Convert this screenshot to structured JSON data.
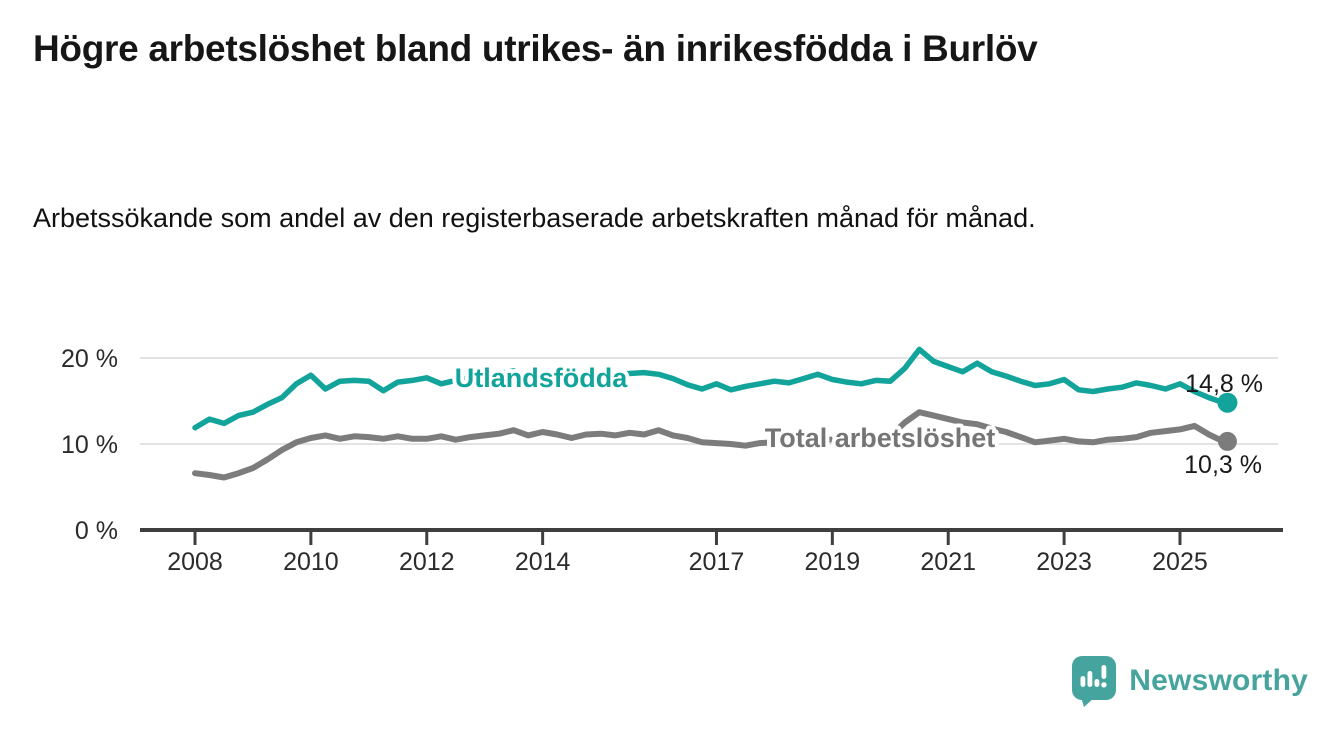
{
  "title": "Högre arbetslöshet bland utrikes- än inrikesfödda i Burlöv",
  "subtitle": "Arbetssökande som andel av den registerbaserade arbetskraften månad för månad.",
  "branding": {
    "logo_text": "Newsworthy",
    "logo_icon": "bar-chart-speech-bubble-icon",
    "logo_color": "#46a49e"
  },
  "colors": {
    "accent_teal": "#12a39b",
    "line_gray": "#7c7c7c",
    "title_text": "#161616",
    "gridline": "#e3e3e3",
    "axis": "#3f3f3f"
  },
  "chart_data": {
    "type": "line",
    "title": "Högre arbetslöshet bland utrikes- än inrikesfödda i Burlöv",
    "subtitle": "Arbetssökande som andel av den registerbaserade arbetskraften månad för månad.",
    "xlabel": "",
    "ylabel": "",
    "unit": "%",
    "ylim": [
      0,
      22
    ],
    "grid": "horizontal",
    "legend": "inline-series-labels",
    "yticks": [
      {
        "value": 0,
        "label": "0 %"
      },
      {
        "value": 10,
        "label": "10 %"
      },
      {
        "value": 20,
        "label": "20 %"
      }
    ],
    "xticks": [
      {
        "value": 2008,
        "label": "2008"
      },
      {
        "value": 2010,
        "label": "2010"
      },
      {
        "value": 2012,
        "label": "2012"
      },
      {
        "value": 2014,
        "label": "2014"
      },
      {
        "value": 2017,
        "label": "2017"
      },
      {
        "value": 2019,
        "label": "2019"
      },
      {
        "value": 2021,
        "label": "2021"
      },
      {
        "value": 2023,
        "label": "2023"
      },
      {
        "value": 2025,
        "label": "2025"
      }
    ],
    "x": [
      2008.0,
      2008.25,
      2008.5,
      2008.75,
      2009.0,
      2009.25,
      2009.5,
      2009.75,
      2010.0,
      2010.25,
      2010.5,
      2010.75,
      2011.0,
      2011.25,
      2011.5,
      2011.75,
      2012.0,
      2012.25,
      2012.5,
      2012.75,
      2013.0,
      2013.25,
      2013.5,
      2013.75,
      2014.0,
      2014.25,
      2014.5,
      2014.75,
      2015.0,
      2015.25,
      2015.5,
      2015.75,
      2016.0,
      2016.25,
      2016.5,
      2016.75,
      2017.0,
      2017.25,
      2017.5,
      2017.75,
      2018.0,
      2018.25,
      2018.5,
      2018.75,
      2019.0,
      2019.25,
      2019.5,
      2019.75,
      2020.0,
      2020.25,
      2020.5,
      2020.75,
      2021.0,
      2021.25,
      2021.5,
      2021.75,
      2022.0,
      2022.25,
      2022.5,
      2022.75,
      2023.0,
      2023.25,
      2023.5,
      2023.75,
      2024.0,
      2024.25,
      2024.5,
      2024.75,
      2025.0,
      2025.25,
      2025.5,
      2025.75
    ],
    "series": [
      {
        "name": "Utlandsfödda",
        "color": "#12a39b",
        "label_color": "#12a39b",
        "end_label": "14,8 %",
        "end_value": 14.8,
        "values": [
          11.9,
          12.9,
          12.4,
          13.3,
          13.7,
          14.6,
          15.4,
          17.0,
          18.0,
          16.4,
          17.3,
          17.4,
          17.3,
          16.2,
          17.2,
          17.4,
          17.7,
          17.0,
          17.4,
          17.7,
          17.9,
          18.2,
          18.5,
          17.9,
          18.1,
          17.4,
          17.6,
          18.0,
          17.9,
          18.0,
          18.2,
          18.3,
          18.1,
          17.6,
          16.9,
          16.4,
          17.0,
          16.3,
          16.7,
          17.0,
          17.3,
          17.1,
          17.6,
          18.1,
          17.5,
          17.2,
          17.0,
          17.4,
          17.3,
          18.8,
          21.0,
          19.6,
          19.0,
          18.4,
          19.4,
          18.4,
          17.9,
          17.3,
          16.8,
          17.0,
          17.5,
          16.3,
          16.1,
          16.4,
          16.6,
          17.1,
          16.8,
          16.4,
          17.0,
          16.1,
          15.4,
          14.8
        ]
      },
      {
        "name": "Total arbetslöshet",
        "color": "#7c7c7c",
        "label_color": "#757575",
        "end_label": "10,3 %",
        "end_value": 10.3,
        "values": [
          6.6,
          6.4,
          6.1,
          6.6,
          7.2,
          8.2,
          9.3,
          10.2,
          10.7,
          11.0,
          10.6,
          10.9,
          10.8,
          10.6,
          10.9,
          10.6,
          10.6,
          10.9,
          10.5,
          10.8,
          11.0,
          11.2,
          11.6,
          11.0,
          11.4,
          11.1,
          10.7,
          11.1,
          11.2,
          11.0,
          11.3,
          11.1,
          11.6,
          11.0,
          10.7,
          10.2,
          10.1,
          10.0,
          9.8,
          10.1,
          10.2,
          10.3,
          10.4,
          10.6,
          10.5,
          10.4,
          10.6,
          10.8,
          10.9,
          12.5,
          13.7,
          13.3,
          12.9,
          12.5,
          12.3,
          11.8,
          11.4,
          10.8,
          10.2,
          10.4,
          10.6,
          10.3,
          10.2,
          10.5,
          10.6,
          10.8,
          11.3,
          11.5,
          11.7,
          12.1,
          11.1,
          10.3
        ]
      }
    ]
  }
}
